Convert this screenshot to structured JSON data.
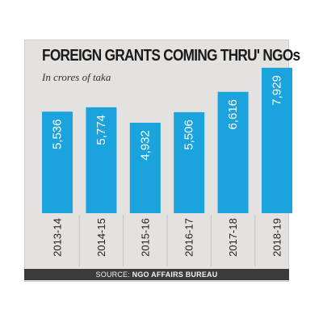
{
  "header": {
    "title": "FOREIGN GRANTS COMING THRU' NGOs",
    "subtitle": "In crores of taka"
  },
  "footer": {
    "source_label": "SOURCE: ",
    "source_org": "NGO AFFAIRS BUREAU"
  },
  "colors": {
    "bar": "#1aa3dd",
    "background": "#e3e2e0",
    "value_text": "#ffffff",
    "axis_text": "#222222"
  },
  "chart_data": {
    "type": "bar",
    "title": "FOREIGN GRANTS COMING THRU' NGOs",
    "subtitle": "In crores of taka",
    "categories": [
      "2013-14",
      "2014-15",
      "2015-16",
      "2016-17",
      "2017-18",
      "2018-19"
    ],
    "values": [
      5536,
      5774,
      4932,
      5506,
      6616,
      7929
    ],
    "value_labels": [
      "5,536",
      "5,774",
      "4,932",
      "5,506",
      "6,616",
      "7,929"
    ],
    "xlabel": "",
    "ylabel": "",
    "ylim": [
      0,
      8000
    ],
    "grid": false,
    "legend": "none"
  }
}
